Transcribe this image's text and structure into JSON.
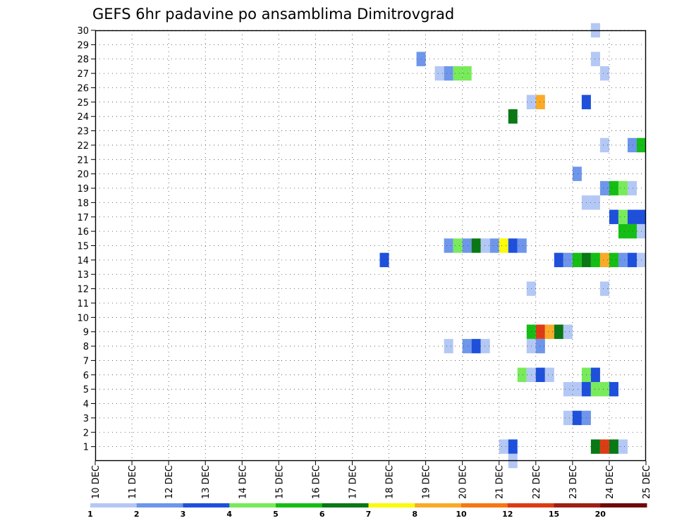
{
  "chart_data": {
    "type": "heatmap",
    "title": "GEFS 6hr padavine po ansamblima Dimitrovgrad",
    "xlabel": "",
    "ylabel": "",
    "x_ticks": [
      "10 DEC",
      "11 DEC",
      "12 DEC",
      "13 DEC",
      "14 DEC",
      "15 DEC",
      "16 DEC",
      "17 DEC",
      "18 DEC",
      "19 DEC",
      "20 DEC",
      "21 DEC",
      "22 DEC",
      "23 DEC",
      "24 DEC",
      "25 DEC"
    ],
    "xlim_days": [
      10,
      25
    ],
    "y_ticks": [
      "1",
      "2",
      "3",
      "4",
      "5",
      "6",
      "7",
      "8",
      "9",
      "10",
      "11",
      "12",
      "13",
      "14",
      "15",
      "16",
      "17",
      "18",
      "19",
      "20",
      "21",
      "22",
      "23",
      "24",
      "25",
      "26",
      "27",
      "28",
      "29",
      "30"
    ],
    "ylim": [
      0,
      30
    ],
    "grid": true,
    "legend": {
      "placement": "bottom",
      "colors": [
        "#b4c8f5",
        "#6e96eb",
        "#1e50dc",
        "#78eb5a",
        "#14be14",
        "#0a7814",
        "#fafa0a",
        "#faaa28",
        "#f57814",
        "#dc3c14",
        "#a01e14",
        "#6e0a0a"
      ],
      "labels": [
        "1",
        "2",
        "3",
        "4",
        "5",
        "6",
        "7",
        "8",
        "10",
        "12",
        "15",
        "20"
      ]
    },
    "cell_hours": 6,
    "series_fields": [
      "member",
      "day",
      "level_index"
    ],
    "cells": [
      [
        30,
        23.5,
        0
      ],
      [
        28,
        18.75,
        1
      ],
      [
        28,
        23.5,
        0
      ],
      [
        27,
        19.25,
        0
      ],
      [
        27,
        19.5,
        1
      ],
      [
        27,
        19.75,
        3
      ],
      [
        27,
        20.0,
        3
      ],
      [
        27,
        23.75,
        0
      ],
      [
        25,
        21.75,
        0
      ],
      [
        25,
        22.0,
        7
      ],
      [
        25,
        23.25,
        2
      ],
      [
        24,
        21.25,
        5
      ],
      [
        22,
        23.75,
        0
      ],
      [
        22,
        24.5,
        1
      ],
      [
        22,
        24.75,
        4
      ],
      [
        20,
        23.0,
        1
      ],
      [
        19,
        23.75,
        1
      ],
      [
        19,
        24.0,
        4
      ],
      [
        19,
        24.25,
        3
      ],
      [
        19,
        24.5,
        0
      ],
      [
        18,
        23.25,
        0
      ],
      [
        18,
        23.5,
        0
      ],
      [
        17,
        24.0,
        2
      ],
      [
        17,
        24.25,
        3
      ],
      [
        17,
        24.5,
        2
      ],
      [
        17,
        24.75,
        2
      ],
      [
        16,
        24.25,
        4
      ],
      [
        16,
        24.5,
        4
      ],
      [
        16,
        24.75,
        0
      ],
      [
        15,
        19.5,
        1
      ],
      [
        15,
        19.75,
        3
      ],
      [
        15,
        20.0,
        1
      ],
      [
        15,
        20.25,
        5
      ],
      [
        15,
        20.5,
        0
      ],
      [
        15,
        20.75,
        1
      ],
      [
        15,
        21.0,
        6
      ],
      [
        15,
        21.25,
        2
      ],
      [
        15,
        21.5,
        1
      ],
      [
        14,
        17.75,
        2
      ],
      [
        14,
        22.5,
        2
      ],
      [
        14,
        22.75,
        1
      ],
      [
        14,
        23.0,
        4
      ],
      [
        14,
        23.25,
        5
      ],
      [
        14,
        23.5,
        4
      ],
      [
        14,
        23.75,
        7
      ],
      [
        14,
        24.0,
        4
      ],
      [
        14,
        24.25,
        1
      ],
      [
        14,
        24.5,
        2
      ],
      [
        14,
        24.75,
        0
      ],
      [
        12,
        21.75,
        0
      ],
      [
        12,
        23.75,
        0
      ],
      [
        9,
        21.75,
        4
      ],
      [
        9,
        22.0,
        9
      ],
      [
        9,
        22.25,
        7
      ],
      [
        9,
        22.5,
        5
      ],
      [
        9,
        22.75,
        0
      ],
      [
        8,
        19.5,
        0
      ],
      [
        8,
        20.0,
        1
      ],
      [
        8,
        20.25,
        2
      ],
      [
        8,
        20.5,
        0
      ],
      [
        8,
        21.75,
        0
      ],
      [
        8,
        22.0,
        1
      ],
      [
        6,
        21.5,
        3
      ],
      [
        6,
        21.75,
        0
      ],
      [
        6,
        22.0,
        2
      ],
      [
        6,
        22.25,
        0
      ],
      [
        6,
        23.25,
        3
      ],
      [
        6,
        23.5,
        2
      ],
      [
        5,
        22.75,
        0
      ],
      [
        5,
        23.0,
        0
      ],
      [
        5,
        23.25,
        2
      ],
      [
        5,
        23.5,
        3
      ],
      [
        5,
        23.75,
        3
      ],
      [
        5,
        24.0,
        2
      ],
      [
        3,
        22.75,
        0
      ],
      [
        3,
        23.0,
        2
      ],
      [
        3,
        23.25,
        1
      ],
      [
        1,
        21.0,
        0
      ],
      [
        1,
        21.25,
        2
      ],
      [
        1,
        23.5,
        5
      ],
      [
        1,
        23.75,
        9
      ],
      [
        1,
        24.0,
        5
      ],
      [
        1,
        24.25,
        0
      ],
      [
        0,
        21.25,
        0
      ]
    ]
  }
}
